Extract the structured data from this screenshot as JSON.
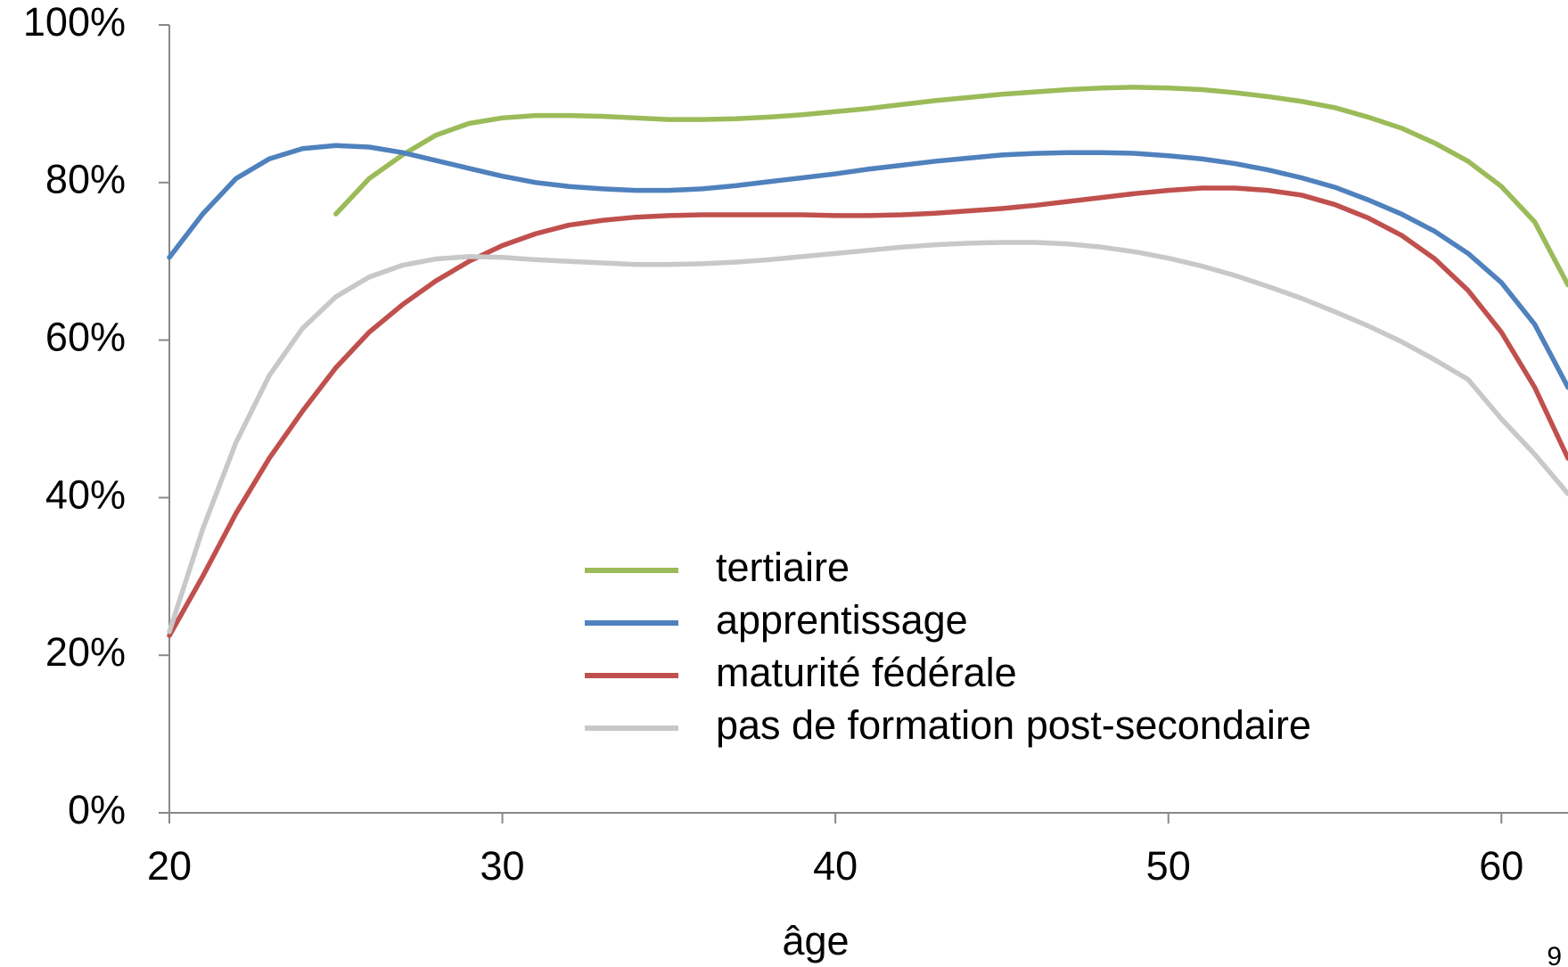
{
  "chart_data": {
    "type": "line",
    "xlabel": "âge",
    "page_number": "9",
    "x": [
      20,
      21,
      22,
      23,
      24,
      25,
      26,
      27,
      28,
      29,
      30,
      31,
      32,
      33,
      34,
      35,
      36,
      37,
      38,
      39,
      40,
      41,
      42,
      43,
      44,
      45,
      46,
      47,
      48,
      49,
      50,
      51,
      52,
      53,
      54,
      55,
      56,
      57,
      58,
      59,
      60,
      61,
      62
    ],
    "series": [
      {
        "name": "tertiaire",
        "color": "#9bbb59",
        "values": [
          null,
          null,
          null,
          null,
          null,
          76,
          80.5,
          83.5,
          86,
          87.5,
          88.2,
          88.5,
          88.5,
          88.4,
          88.2,
          88,
          88,
          88.1,
          88.3,
          88.6,
          89,
          89.4,
          89.9,
          90.4,
          90.8,
          91.2,
          91.5,
          91.8,
          92,
          92.1,
          92,
          91.8,
          91.4,
          90.9,
          90.3,
          89.5,
          88.3,
          86.9,
          85,
          82.7,
          79.5,
          75,
          67
        ]
      },
      {
        "name": "apprentissage",
        "color": "#4f81bd",
        "values": [
          70.5,
          76,
          80.5,
          83,
          84.3,
          84.7,
          84.5,
          83.8,
          82.8,
          81.8,
          80.8,
          80,
          79.5,
          79.2,
          79,
          79,
          79.2,
          79.6,
          80.1,
          80.6,
          81.1,
          81.7,
          82.2,
          82.7,
          83.1,
          83.5,
          83.7,
          83.8,
          83.8,
          83.7,
          83.4,
          83,
          82.4,
          81.6,
          80.6,
          79.4,
          77.8,
          76,
          73.8,
          71,
          67.3,
          62,
          54
        ]
      },
      {
        "name": "maturité fédérale",
        "color": "#c0504d",
        "values": [
          22.5,
          30,
          38,
          45,
          51,
          56.5,
          61,
          64.5,
          67.5,
          70,
          72,
          73.5,
          74.6,
          75.2,
          75.6,
          75.8,
          75.9,
          75.9,
          75.9,
          75.9,
          75.8,
          75.8,
          75.9,
          76.1,
          76.4,
          76.7,
          77.1,
          77.6,
          78.1,
          78.6,
          79,
          79.3,
          79.3,
          79,
          78.4,
          77.2,
          75.5,
          73.3,
          70.3,
          66.3,
          61,
          54,
          45
        ]
      },
      {
        "name": "pas de formation post-secondaire",
        "color": "#c8c8c8",
        "values": [
          23,
          36,
          47,
          55.5,
          61.5,
          65.5,
          68,
          69.5,
          70.3,
          70.6,
          70.5,
          70.2,
          70,
          69.8,
          69.6,
          69.6,
          69.7,
          69.9,
          70.2,
          70.6,
          71,
          71.4,
          71.8,
          72.1,
          72.3,
          72.4,
          72.4,
          72.2,
          71.8,
          71.2,
          70.4,
          69.4,
          68.2,
          66.8,
          65.3,
          63.6,
          61.8,
          59.8,
          57.5,
          55,
          50,
          45.5,
          40.5
        ]
      }
    ],
    "xlim": [
      20,
      62
    ],
    "xticks": [
      20,
      30,
      40,
      50,
      60
    ],
    "ylim": [
      0,
      100
    ],
    "yticks": [
      {
        "value": 0,
        "label": "0%"
      },
      {
        "value": 20,
        "label": "20%"
      },
      {
        "value": 40,
        "label": "40%"
      },
      {
        "value": 60,
        "label": "60%"
      },
      {
        "value": 80,
        "label": "80%"
      },
      {
        "value": 100,
        "label": "100%"
      }
    ],
    "grid": false,
    "legend": "center"
  }
}
